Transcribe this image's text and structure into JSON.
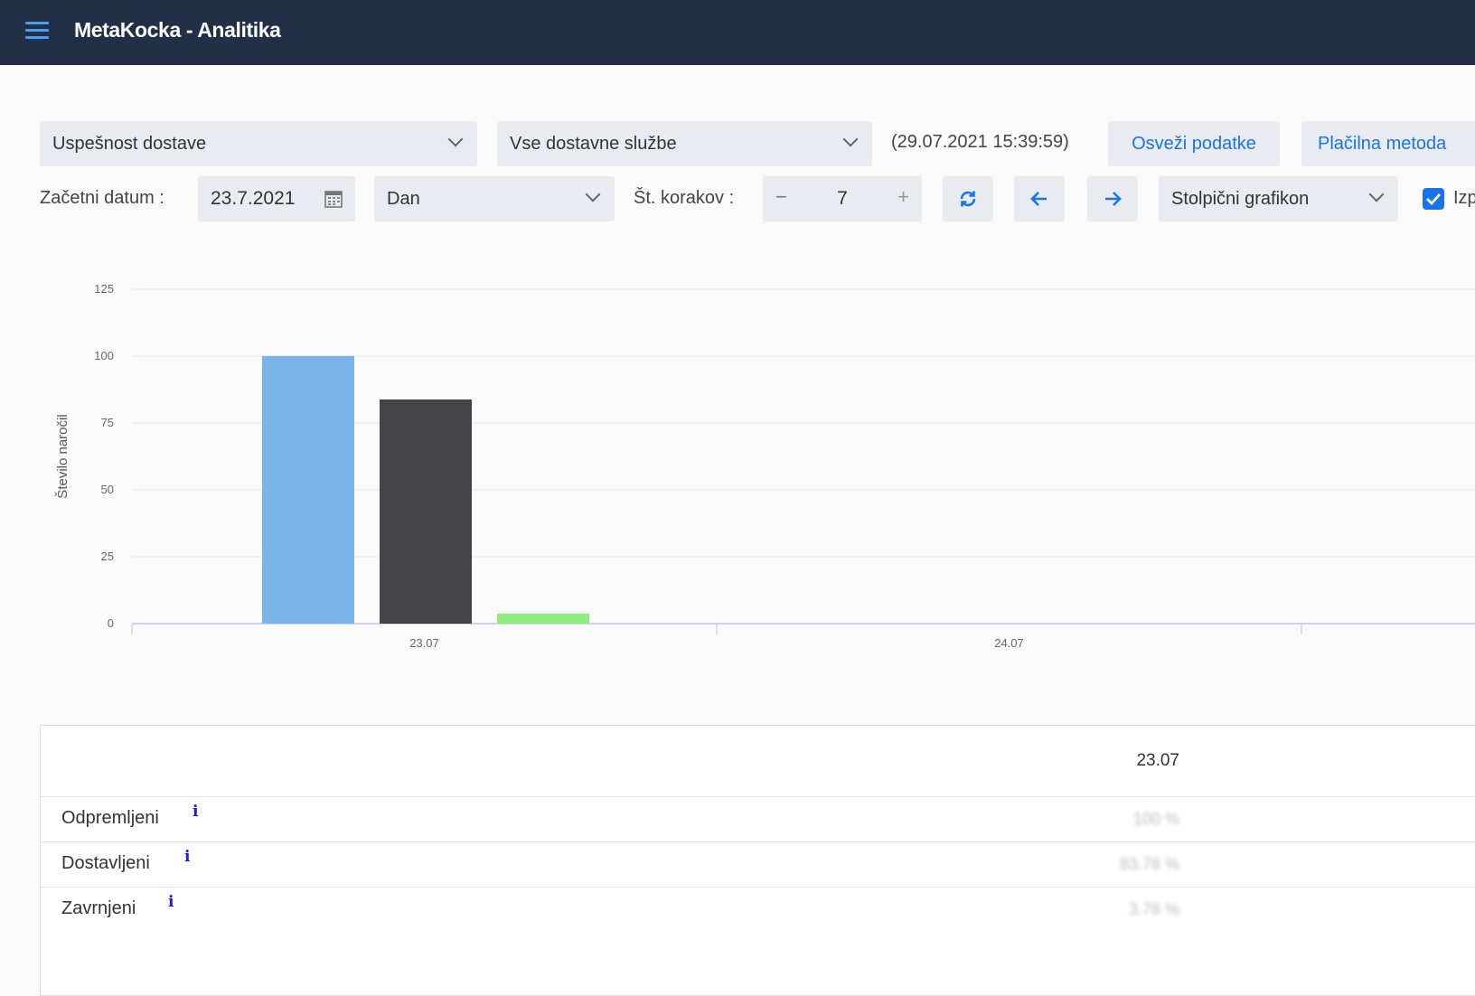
{
  "header": {
    "title": "MetaKocka - Analitika"
  },
  "filters": {
    "report_type": "Uspešnost dostave",
    "delivery_service": "Vse dostavne službe",
    "timestamp": "(29.07.2021 15:39:59)",
    "refresh_label": "Osveži podatke",
    "payment_label": "Plačilna metoda",
    "start_date_label": "Začetni datum :",
    "start_date_value": "23.7.2021",
    "period": "Dan",
    "steps_label": "Št. korakov :",
    "steps_value": "7",
    "chart_type": "Stolpični grafikon",
    "checkbox_label": "Izp"
  },
  "chart_data": {
    "type": "bar",
    "categories": [
      "23.07",
      "24.07"
    ],
    "series": [
      {
        "values": [
          100,
          0
        ],
        "color": "#7ab4e8"
      },
      {
        "values": [
          83.78,
          0
        ],
        "color": "#434348"
      },
      {
        "values": [
          3.78,
          0
        ],
        "color": "#90ed7d"
      }
    ],
    "ylabel": "Število naročil",
    "ylim": [
      0,
      125
    ],
    "yticks": [
      "0",
      "25",
      "50",
      "75",
      "100",
      "125"
    ],
    "grid": true
  },
  "table": {
    "column": "23.07",
    "rows": [
      {
        "label": "Odpremljeni",
        "info": "i",
        "value": "100 %"
      },
      {
        "label": "Dostavljeni",
        "info": "i",
        "value": "83.78 %"
      },
      {
        "label": "Zavrnjeni",
        "info": "i",
        "value": "3.78 %"
      }
    ]
  },
  "colors": {
    "topbar": "#213047",
    "accent": "#1a73e8"
  }
}
